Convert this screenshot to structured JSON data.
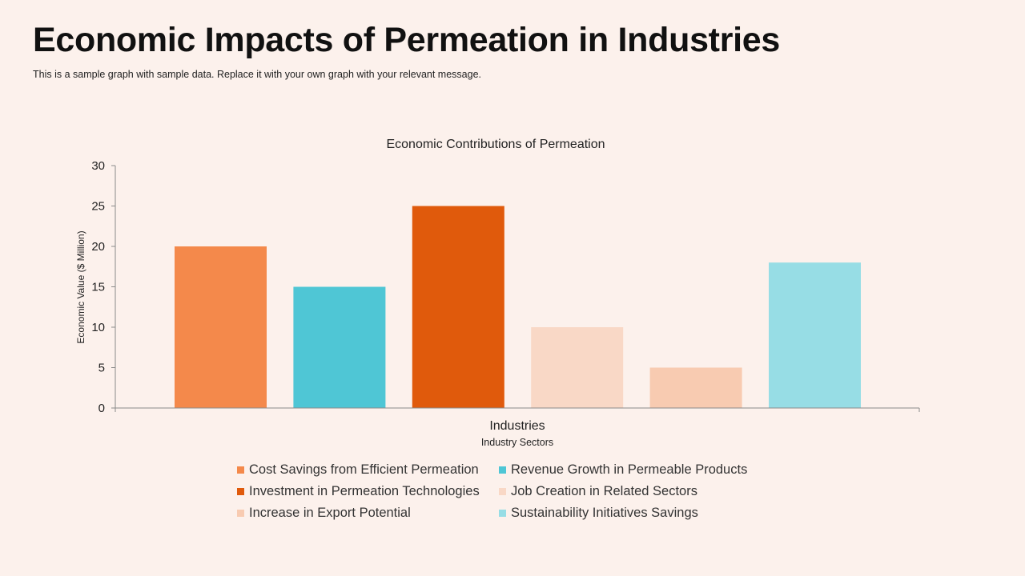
{
  "page": {
    "title": "Economic Impacts of Permeation in Industries",
    "subtitle": "This is a sample graph with sample data. Replace it with your own graph with your relevant message."
  },
  "chart_data": {
    "type": "bar",
    "title": "Economic Contributions of Permeation",
    "categories": [
      "Industries"
    ],
    "category_axis_title": "Industry Sectors",
    "ylabel": "Economic Value ($ Million)",
    "ylim": [
      0,
      30
    ],
    "yticks": [
      0,
      5,
      10,
      15,
      20,
      25,
      30
    ],
    "grid": false,
    "legend_position": "bottom",
    "series": [
      {
        "name": "Cost Savings from Efficient Permeation",
        "values": [
          20
        ],
        "color": "#F4894B"
      },
      {
        "name": "Revenue Growth in Permeable Products",
        "values": [
          15
        ],
        "color": "#4FC6D5"
      },
      {
        "name": "Investment in Permeation Technologies",
        "values": [
          25
        ],
        "color": "#E05A0C"
      },
      {
        "name": "Job Creation in Related Sectors",
        "values": [
          10
        ],
        "color": "#F9D8C6"
      },
      {
        "name": "Increase in Export Potential",
        "values": [
          5
        ],
        "color": "#F8CBB1"
      },
      {
        "name": "Sustainability Initiatives Savings",
        "values": [
          18
        ],
        "color": "#97DDE5"
      }
    ]
  }
}
